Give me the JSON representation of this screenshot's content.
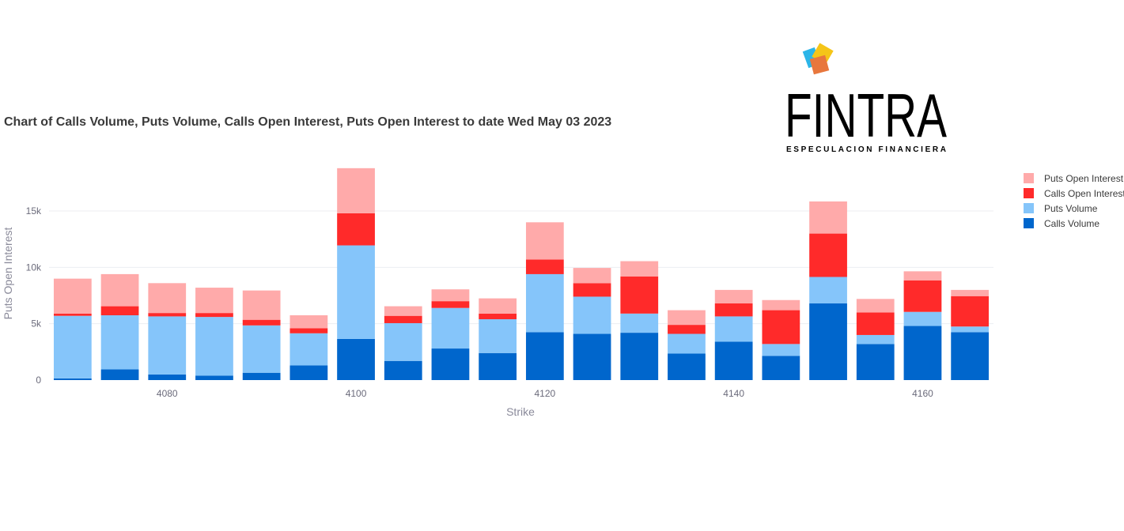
{
  "title": "Chart of Calls Volume, Puts Volume, Calls Open Interest, Puts Open Interest to date Wed May 03 2023",
  "logo": {
    "wordmark": "FINTRA",
    "tagline": "ESPECULACION FINANCIERA",
    "colors": [
      "#2bb5e8",
      "#f5c518",
      "#e8773d"
    ]
  },
  "chart_data": {
    "type": "bar",
    "stacked": true,
    "xlabel": "Strike",
    "ylabel": "Puts Open Interest",
    "xlim": [
      4067.5,
      4167.5
    ],
    "ylim": [
      0,
      19000
    ],
    "yticks": [
      0,
      5000,
      10000,
      15000
    ],
    "ytick_labels": [
      "0",
      "5k",
      "10k",
      "15k"
    ],
    "xticks": [
      4080,
      4100,
      4120,
      4140,
      4160
    ],
    "grid": true,
    "legend_position": "right",
    "x": [
      4070,
      4075,
      4080,
      4085,
      4090,
      4095,
      4100,
      4105,
      4110,
      4115,
      4120,
      4125,
      4130,
      4135,
      4140,
      4145,
      4150,
      4155,
      4160,
      4165
    ],
    "series": [
      {
        "name": "Calls Volume",
        "color": "#0066cc",
        "values": [
          150,
          950,
          500,
          400,
          650,
          1300,
          3650,
          1700,
          2800,
          2400,
          4250,
          4100,
          4200,
          2350,
          3400,
          2150,
          6800,
          3200,
          4800,
          4250
        ]
      },
      {
        "name": "Puts Volume",
        "color": "#85c5fa",
        "values": [
          5550,
          4800,
          5150,
          5200,
          4200,
          2850,
          8300,
          3350,
          3600,
          3000,
          5150,
          3300,
          1700,
          1750,
          2250,
          1050,
          2350,
          800,
          1250,
          500
        ]
      },
      {
        "name": "Calls Open Interest",
        "color": "#ff2a2a",
        "values": [
          200,
          800,
          300,
          350,
          500,
          450,
          2850,
          650,
          600,
          500,
          1300,
          1200,
          3300,
          800,
          1150,
          3000,
          3850,
          2000,
          2800,
          2700
        ]
      },
      {
        "name": "Puts Open Interest",
        "color": "#ffaaaa",
        "values": [
          3100,
          2850,
          2650,
          2250,
          2600,
          1150,
          4000,
          850,
          1050,
          1350,
          3300,
          1350,
          1350,
          1300,
          1200,
          900,
          2850,
          1200,
          800,
          550
        ]
      }
    ]
  }
}
